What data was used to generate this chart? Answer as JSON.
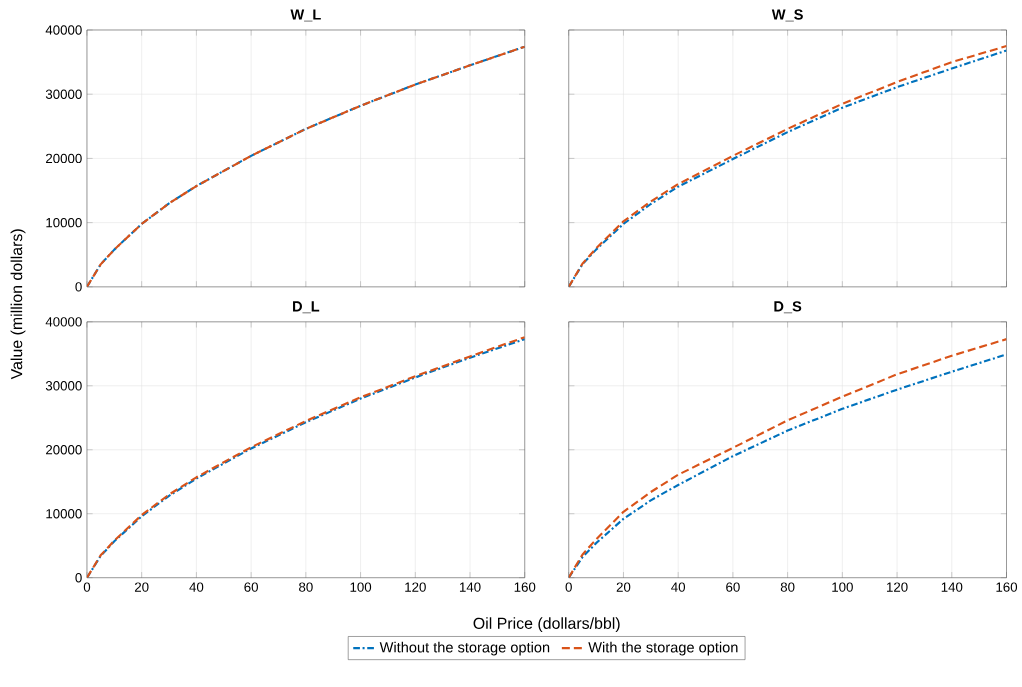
{
  "chart_data": [
    {
      "type": "line",
      "title": "W_L",
      "ylabel": "Value (million dollars)",
      "x": [
        0,
        5,
        10,
        20,
        30,
        40,
        60,
        80,
        100,
        120,
        140,
        160
      ],
      "xlim": [
        0,
        160
      ],
      "ylim": [
        0,
        40000
      ],
      "xticks": [
        0,
        20,
        40,
        60,
        80,
        100,
        120,
        140,
        160
      ],
      "yticks": [
        0,
        10000,
        20000,
        30000,
        40000
      ],
      "grid": true,
      "tick_labels": "y",
      "series": [
        {
          "color": "#0072bd",
          "line_style": "dashdot",
          "values": [
            0,
            3500,
            5800,
            9800,
            13000,
            15700,
            20400,
            24600,
            28200,
            31500,
            34500,
            37400
          ]
        },
        {
          "color": "#d95319",
          "line_style": "dashed",
          "values": [
            0,
            3500,
            5800,
            9800,
            13000,
            15700,
            20400,
            24600,
            28200,
            31500,
            34500,
            37400
          ]
        }
      ]
    },
    {
      "type": "line",
      "title": "W_S",
      "x": [
        0,
        5,
        10,
        20,
        30,
        40,
        60,
        80,
        100,
        120,
        140,
        160
      ],
      "xlim": [
        0,
        160
      ],
      "ylim": [
        0,
        40000
      ],
      "xticks": [
        0,
        20,
        40,
        60,
        80,
        100,
        120,
        140,
        160
      ],
      "yticks": [
        0,
        10000,
        20000,
        30000,
        40000
      ],
      "grid": true,
      "tick_labels": false,
      "series": [
        {
          "color": "#0072bd",
          "line_style": "dashdot",
          "values": [
            0,
            3500,
            5800,
            9800,
            12900,
            15600,
            19900,
            24100,
            27900,
            31100,
            34000,
            36800
          ]
        },
        {
          "color": "#d95319",
          "line_style": "dashed",
          "values": [
            0,
            3600,
            6000,
            10200,
            13300,
            16000,
            20400,
            24600,
            28500,
            31900,
            35000,
            37500
          ]
        }
      ]
    },
    {
      "type": "line",
      "title": "D_L",
      "xlabel": "Oil Price (dollars/bbl)",
      "x": [
        0,
        5,
        10,
        20,
        30,
        40,
        60,
        80,
        100,
        120,
        140,
        160
      ],
      "xlim": [
        0,
        160
      ],
      "ylim": [
        0,
        40000
      ],
      "xticks": [
        0,
        20,
        40,
        60,
        80,
        100,
        120,
        140,
        160
      ],
      "yticks": [
        0,
        10000,
        20000,
        30000,
        40000
      ],
      "grid": true,
      "legend": "bottom",
      "series": [
        {
          "name": "Without the storage option",
          "color": "#0072bd",
          "line_style": "dashdot",
          "values": [
            0,
            3400,
            5700,
            9600,
            12800,
            15500,
            20200,
            24300,
            28000,
            31300,
            34400,
            37300
          ]
        },
        {
          "name": "With the storage option",
          "color": "#d95319",
          "line_style": "dashed",
          "values": [
            0,
            3500,
            5800,
            9800,
            13000,
            15700,
            20400,
            24500,
            28200,
            31500,
            34600,
            37600
          ]
        }
      ]
    },
    {
      "type": "line",
      "title": "D_S",
      "x": [
        0,
        5,
        10,
        20,
        30,
        40,
        60,
        80,
        100,
        120,
        140,
        160
      ],
      "xlim": [
        0,
        160
      ],
      "ylim": [
        0,
        40000
      ],
      "xticks": [
        0,
        20,
        40,
        60,
        80,
        100,
        120,
        140,
        160
      ],
      "yticks": [
        0,
        10000,
        20000,
        30000,
        40000
      ],
      "grid": true,
      "tick_labels": "x",
      "series": [
        {
          "color": "#0072bd",
          "line_style": "dashdot",
          "values": [
            0,
            3200,
            5400,
            9200,
            12100,
            14500,
            19000,
            23000,
            26400,
            29400,
            32200,
            34900
          ]
        },
        {
          "color": "#d95319",
          "line_style": "dashed",
          "values": [
            0,
            3600,
            6000,
            10300,
            13400,
            16100,
            20300,
            24600,
            28300,
            31800,
            34700,
            37300
          ]
        }
      ]
    }
  ]
}
